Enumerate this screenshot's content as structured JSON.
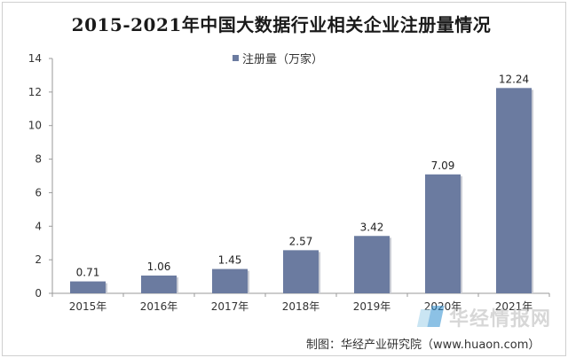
{
  "chart_data": {
    "type": "bar",
    "title": "2015-2021年中国大数据行业相关企业注册量情况",
    "categories": [
      "2015年",
      "2016年",
      "2017年",
      "2018年",
      "2019年",
      "2020年",
      "2021年"
    ],
    "series": [
      {
        "name": "注册量（万家）",
        "values": [
          0.71,
          1.06,
          1.45,
          2.57,
          3.42,
          7.09,
          12.24
        ]
      }
    ],
    "ylim": [
      0,
      14
    ],
    "yticks": [
      0,
      2,
      4,
      6,
      8,
      10,
      12,
      14
    ],
    "xlabel": "",
    "ylabel": "",
    "legend": "top-center",
    "grid": false,
    "bar_color": "#6b7ba0"
  },
  "source": "制图：华经产业研究院（www.huaon.com）",
  "watermark": {
    "text": "华经情报网",
    "logo_icon": "huajing-logo-icon"
  }
}
